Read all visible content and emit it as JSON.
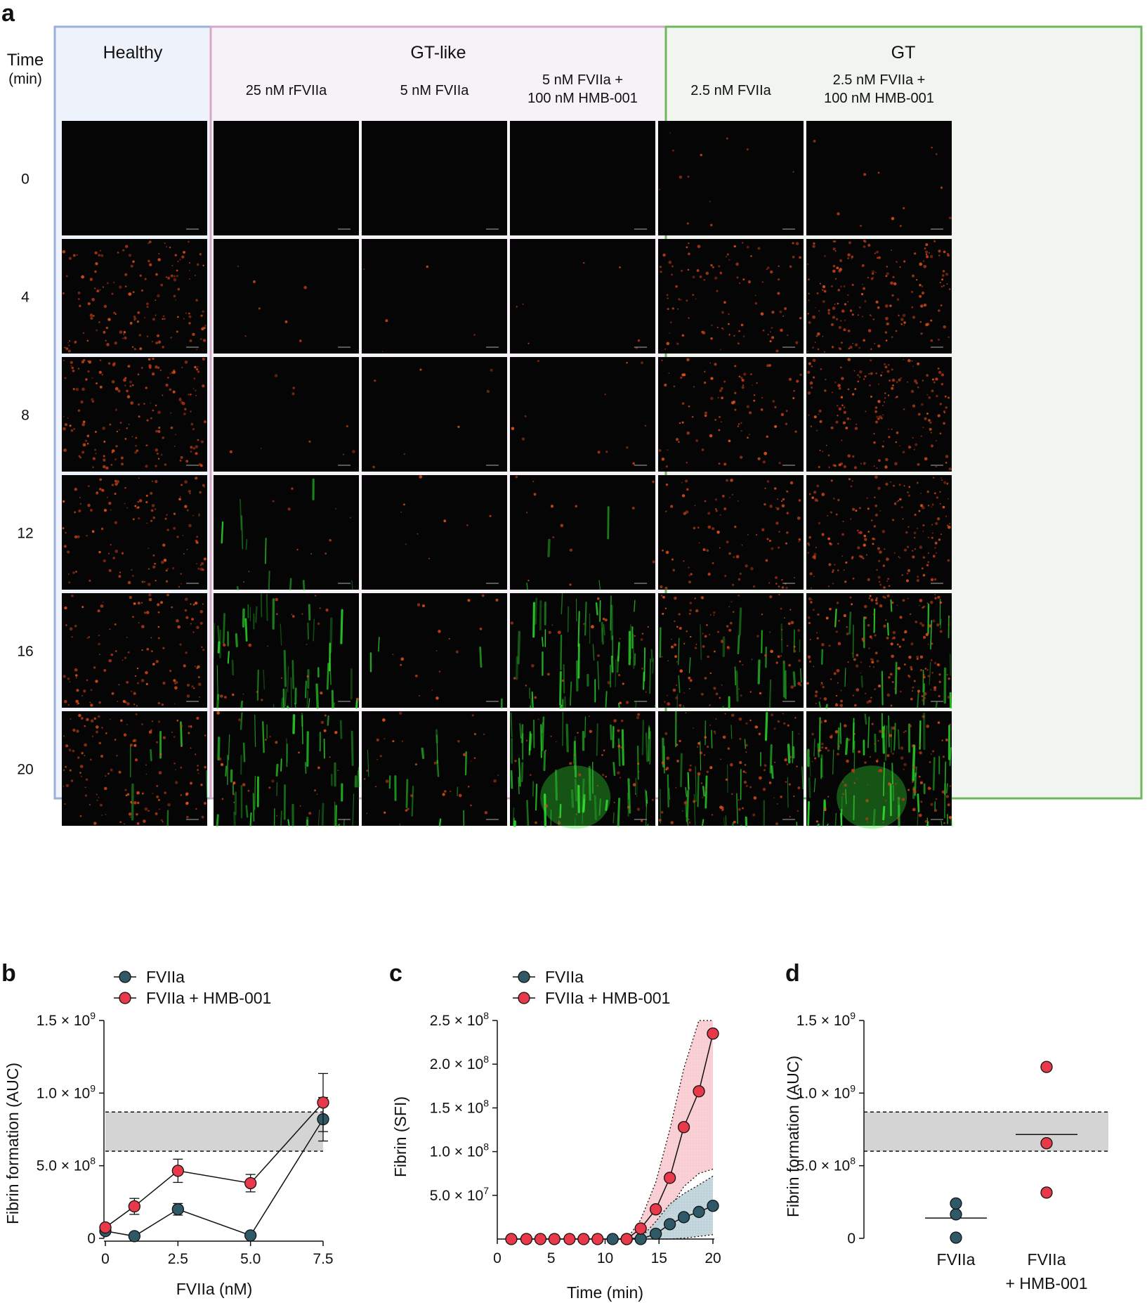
{
  "panel_letters": {
    "a": "a",
    "b": "b",
    "c": "c",
    "d": "d"
  },
  "panel_a": {
    "time_header": "Time",
    "time_unit": "(min)",
    "times": [
      "0",
      "4",
      "8",
      "12",
      "16",
      "20"
    ],
    "groups": [
      {
        "label": "Healthy",
        "color": "#9ab1d6",
        "fill": "#eef2fa"
      },
      {
        "label": "GT-like",
        "color": "#d6a8c6",
        "fill": "#f7f2f7"
      },
      {
        "label": "GT",
        "color": "#6db85c",
        "fill": "#f1f5f0"
      }
    ],
    "conditions": [
      {
        "group": 0,
        "line1": "",
        "line2": ""
      },
      {
        "group": 1,
        "line1": "25 nM rFVIIa",
        "line2": ""
      },
      {
        "group": 1,
        "line1": "5 nM FVIIa",
        "line2": ""
      },
      {
        "group": 1,
        "line1": "5 nM FVIIa +",
        "line2": "100 nM HMB-001"
      },
      {
        "group": 2,
        "line1": "2.5 nM FVIIa",
        "line2": ""
      },
      {
        "group": 2,
        "line1": "2.5 nM FVIIa +",
        "line2": "100 nM HMB-001"
      }
    ],
    "image_intensity": {
      "red": [
        [
          0.0,
          0.65,
          0.75,
          0.55,
          0.55,
          0.6
        ],
        [
          0.0,
          0.03,
          0.04,
          0.05,
          0.1,
          0.12
        ],
        [
          0.0,
          0.02,
          0.03,
          0.04,
          0.08,
          0.15
        ],
        [
          0.0,
          0.03,
          0.05,
          0.06,
          0.12,
          0.18
        ],
        [
          0.05,
          0.45,
          0.4,
          0.42,
          0.45,
          0.45
        ],
        [
          0.05,
          0.8,
          0.8,
          0.78,
          0.8,
          0.45
        ]
      ],
      "green": [
        [
          0.0,
          0.0,
          0.0,
          0.0,
          0.0,
          0.1
        ],
        [
          0.0,
          0.0,
          0.0,
          0.15,
          0.75,
          0.8
        ],
        [
          0.0,
          0.0,
          0.0,
          0.0,
          0.05,
          0.2
        ],
        [
          0.0,
          0.0,
          0.0,
          0.05,
          0.85,
          1.0
        ],
        [
          0.0,
          0.0,
          0.0,
          0.0,
          0.35,
          0.6
        ],
        [
          0.0,
          0.0,
          0.0,
          0.0,
          0.4,
          1.0
        ]
      ]
    }
  },
  "chart_data": [
    {
      "panel": "b",
      "type": "line",
      "xlabel": "FVIIa (nM)",
      "ylabel": "Fibrin formation (AUC)",
      "xlim": [
        0,
        7.5
      ],
      "ylim": [
        0,
        1500000000
      ],
      "xticks": [
        "0",
        "2.5",
        "5.0",
        "7.5"
      ],
      "yticks": [
        {
          "value": 0,
          "mant": "0",
          "exp": ""
        },
        {
          "value": 500000000,
          "mant": "5.0 × 10",
          "exp": "8"
        },
        {
          "value": 1000000000,
          "mant": "1.0 × 10",
          "exp": "9"
        },
        {
          "value": 1500000000,
          "mant": "1.5 × 10",
          "exp": "9"
        }
      ],
      "reference_band": [
        600000000,
        870000000
      ],
      "series": [
        {
          "name": "FVIIa",
          "color": "#2f5966",
          "x": [
            0,
            1,
            2.5,
            5,
            7.5
          ],
          "y": [
            50000000,
            15000000,
            200000000,
            20000000,
            820000000
          ],
          "err": [
            0,
            0,
            40000000,
            0,
            150000000
          ]
        },
        {
          "name": "FVIIa + HMB-001",
          "color": "#e8394b",
          "x": [
            0,
            1,
            2.5,
            5,
            7.5
          ],
          "y": [
            75000000,
            220000000,
            465000000,
            380000000,
            935000000
          ],
          "err": [
            0,
            55000000,
            80000000,
            60000000,
            200000000
          ]
        }
      ]
    },
    {
      "panel": "c",
      "type": "line",
      "xlabel": "Time (min)",
      "ylabel": "Fibrin (SFI)",
      "xlim": [
        0,
        20
      ],
      "ylim": [
        0,
        250000000
      ],
      "xticks": [
        "0",
        "5",
        "10",
        "15",
        "20"
      ],
      "yticks": [
        {
          "value": 50000000,
          "mant": "5.0 × 10",
          "exp": "7"
        },
        {
          "value": 100000000,
          "mant": "1.0 × 10",
          "exp": "8"
        },
        {
          "value": 150000000,
          "mant": "1.5 × 10",
          "exp": "8"
        },
        {
          "value": 200000000,
          "mant": "2.0 × 10",
          "exp": "8"
        },
        {
          "value": 250000000,
          "mant": "2.5 × 10",
          "exp": "8"
        }
      ],
      "series": [
        {
          "name": "FVIIa",
          "color": "#2f5966",
          "band_color": "#b8cfd6",
          "x": [
            10.7,
            12,
            13.3,
            14.7,
            16,
            17.3,
            18.7,
            20
          ],
          "y": [
            0,
            0,
            0,
            6000000,
            17000000,
            25000000,
            31000000,
            38000000
          ],
          "band_low": [
            0,
            0,
            0,
            0,
            0,
            1000000,
            3000000,
            5000000
          ],
          "band_high": [
            0,
            0,
            1000000,
            20000000,
            40000000,
            52000000,
            62000000,
            72000000
          ]
        },
        {
          "name": "FVIIa + HMB-001",
          "color": "#e8394b",
          "band_color": "#f7c7cc",
          "x": [
            1.3,
            2.7,
            4,
            5.3,
            6.7,
            8,
            9.3,
            12,
            13.3,
            14.7,
            16,
            17.3,
            18.7,
            20
          ],
          "y": [
            0,
            0,
            0,
            0,
            0,
            0,
            0,
            0,
            12000000,
            34000000,
            70000000,
            128000000,
            169000000,
            235000000
          ],
          "band_low": [
            0,
            0,
            0,
            0,
            0,
            0,
            0,
            0,
            2000000,
            12000000,
            35000000,
            60000000,
            75000000,
            80000000
          ],
          "band_high": [
            0,
            0,
            0,
            0,
            0,
            0,
            0,
            0,
            22000000,
            65000000,
            125000000,
            195000000,
            250000000,
            250000000
          ]
        }
      ]
    },
    {
      "panel": "d",
      "type": "scatter",
      "ylabel": "Fibrin formation (AUC)",
      "ylim": [
        0,
        1500000000
      ],
      "yticks": [
        {
          "value": 0,
          "mant": "0",
          "exp": ""
        },
        {
          "value": 500000000,
          "mant": "5.0 × 10",
          "exp": "8"
        },
        {
          "value": 1000000000,
          "mant": "1.0 × 10",
          "exp": "9"
        },
        {
          "value": 1500000000,
          "mant": "1.5 × 10",
          "exp": "9"
        }
      ],
      "reference_band": [
        600000000,
        870000000
      ],
      "groups": [
        {
          "line1": "FVIIa",
          "line2": "",
          "color": "#2f5966",
          "values": [
            5000000,
            165000000,
            240000000
          ],
          "mean": 140000000
        },
        {
          "line1": "FVIIa",
          "line2": "+ HMB-001",
          "color": "#e8394b",
          "values": [
            315000000,
            655000000,
            1180000000
          ],
          "mean": 715000000
        }
      ]
    }
  ]
}
